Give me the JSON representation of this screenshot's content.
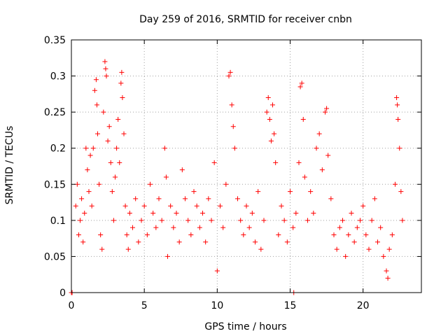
{
  "chart_data": {
    "type": "scatter",
    "title": "Day 259 of 2016, SRMTID for receiver cnbn",
    "xlabel": "GPS time / hours",
    "ylabel": "SRMTID / TECUs",
    "xlim": [
      0,
      24
    ],
    "ylim": [
      0,
      0.35
    ],
    "xticks": [
      0,
      5,
      10,
      15,
      20
    ],
    "xtick_labels": [
      "0",
      "5",
      "10",
      "15",
      "20"
    ],
    "yticks": [
      0,
      0.05,
      0.1,
      0.15,
      0.2,
      0.25,
      0.3,
      0.35
    ],
    "ytick_labels": [
      "0",
      "0.05",
      "0.1",
      "0.15",
      "0.2",
      "0.25",
      "0.3",
      "0.35"
    ],
    "grid": true,
    "marker": "+",
    "color": "#ff0000",
    "series": [
      {
        "name": "SRMTID",
        "points": [
          [
            0.0,
            0.0
          ],
          [
            0.05,
            0.0
          ],
          [
            15.25,
            0.0
          ],
          [
            0.3,
            0.12
          ],
          [
            0.4,
            0.15
          ],
          [
            0.5,
            0.08
          ],
          [
            0.6,
            0.1
          ],
          [
            0.7,
            0.13
          ],
          [
            0.8,
            0.07
          ],
          [
            0.9,
            0.11
          ],
          [
            1.0,
            0.2
          ],
          [
            1.1,
            0.17
          ],
          [
            1.2,
            0.14
          ],
          [
            1.3,
            0.19
          ],
          [
            1.4,
            0.12
          ],
          [
            1.5,
            0.2
          ],
          [
            1.6,
            0.28
          ],
          [
            1.7,
            0.295
          ],
          [
            1.75,
            0.26
          ],
          [
            1.8,
            0.22
          ],
          [
            1.9,
            0.15
          ],
          [
            2.0,
            0.08
          ],
          [
            2.1,
            0.06
          ],
          [
            2.2,
            0.25
          ],
          [
            2.3,
            0.32
          ],
          [
            2.35,
            0.31
          ],
          [
            2.4,
            0.3
          ],
          [
            2.5,
            0.21
          ],
          [
            2.6,
            0.23
          ],
          [
            2.7,
            0.18
          ],
          [
            2.8,
            0.14
          ],
          [
            2.9,
            0.1
          ],
          [
            3.0,
            0.16
          ],
          [
            3.1,
            0.2
          ],
          [
            3.2,
            0.24
          ],
          [
            3.3,
            0.18
          ],
          [
            3.4,
            0.29
          ],
          [
            3.45,
            0.305
          ],
          [
            3.5,
            0.27
          ],
          [
            3.6,
            0.22
          ],
          [
            3.7,
            0.12
          ],
          [
            3.8,
            0.08
          ],
          [
            3.9,
            0.06
          ],
          [
            4.0,
            0.11
          ],
          [
            4.2,
            0.09
          ],
          [
            4.4,
            0.13
          ],
          [
            4.6,
            0.07
          ],
          [
            4.8,
            0.1
          ],
          [
            5.0,
            0.12
          ],
          [
            5.2,
            0.08
          ],
          [
            5.4,
            0.15
          ],
          [
            5.6,
            0.11
          ],
          [
            5.8,
            0.09
          ],
          [
            6.0,
            0.13
          ],
          [
            6.2,
            0.1
          ],
          [
            6.4,
            0.2
          ],
          [
            6.5,
            0.16
          ],
          [
            6.6,
            0.05
          ],
          [
            6.8,
            0.12
          ],
          [
            7.0,
            0.09
          ],
          [
            7.2,
            0.11
          ],
          [
            7.4,
            0.07
          ],
          [
            7.6,
            0.17
          ],
          [
            7.8,
            0.13
          ],
          [
            8.0,
            0.1
          ],
          [
            8.2,
            0.08
          ],
          [
            8.4,
            0.14
          ],
          [
            8.6,
            0.12
          ],
          [
            8.8,
            0.09
          ],
          [
            9.0,
            0.11
          ],
          [
            9.2,
            0.07
          ],
          [
            9.4,
            0.13
          ],
          [
            9.6,
            0.1
          ],
          [
            9.8,
            0.18
          ],
          [
            10.0,
            0.03
          ],
          [
            10.2,
            0.12
          ],
          [
            10.4,
            0.09
          ],
          [
            10.6,
            0.15
          ],
          [
            10.8,
            0.3
          ],
          [
            10.9,
            0.305
          ],
          [
            11.0,
            0.26
          ],
          [
            11.1,
            0.23
          ],
          [
            11.2,
            0.2
          ],
          [
            11.4,
            0.13
          ],
          [
            11.6,
            0.1
          ],
          [
            11.8,
            0.08
          ],
          [
            12.0,
            0.12
          ],
          [
            12.2,
            0.09
          ],
          [
            12.4,
            0.11
          ],
          [
            12.6,
            0.07
          ],
          [
            12.8,
            0.14
          ],
          [
            13.0,
            0.06
          ],
          [
            13.2,
            0.1
          ],
          [
            13.4,
            0.25
          ],
          [
            13.5,
            0.27
          ],
          [
            13.6,
            0.24
          ],
          [
            13.7,
            0.21
          ],
          [
            13.8,
            0.26
          ],
          [
            13.9,
            0.22
          ],
          [
            14.0,
            0.18
          ],
          [
            14.2,
            0.08
          ],
          [
            14.4,
            0.12
          ],
          [
            14.6,
            0.1
          ],
          [
            14.8,
            0.07
          ],
          [
            15.0,
            0.14
          ],
          [
            15.2,
            0.09
          ],
          [
            15.4,
            0.11
          ],
          [
            15.6,
            0.18
          ],
          [
            15.7,
            0.285
          ],
          [
            15.8,
            0.29
          ],
          [
            15.9,
            0.24
          ],
          [
            16.0,
            0.16
          ],
          [
            16.2,
            0.1
          ],
          [
            16.4,
            0.14
          ],
          [
            16.6,
            0.11
          ],
          [
            16.8,
            0.2
          ],
          [
            17.0,
            0.22
          ],
          [
            17.2,
            0.17
          ],
          [
            17.4,
            0.25
          ],
          [
            17.5,
            0.255
          ],
          [
            17.6,
            0.19
          ],
          [
            17.8,
            0.13
          ],
          [
            18.0,
            0.08
          ],
          [
            18.2,
            0.06
          ],
          [
            18.4,
            0.09
          ],
          [
            18.6,
            0.1
          ],
          [
            18.8,
            0.05
          ],
          [
            19.0,
            0.08
          ],
          [
            19.2,
            0.11
          ],
          [
            19.4,
            0.07
          ],
          [
            19.6,
            0.09
          ],
          [
            19.8,
            0.1
          ],
          [
            20.0,
            0.12
          ],
          [
            20.2,
            0.08
          ],
          [
            20.4,
            0.06
          ],
          [
            20.6,
            0.1
          ],
          [
            20.8,
            0.13
          ],
          [
            21.0,
            0.07
          ],
          [
            21.2,
            0.09
          ],
          [
            21.4,
            0.05
          ],
          [
            21.6,
            0.03
          ],
          [
            21.7,
            0.02
          ],
          [
            21.8,
            0.06
          ],
          [
            22.0,
            0.08
          ],
          [
            22.2,
            0.15
          ],
          [
            22.3,
            0.27
          ],
          [
            22.35,
            0.26
          ],
          [
            22.4,
            0.24
          ],
          [
            22.5,
            0.2
          ],
          [
            22.6,
            0.14
          ],
          [
            22.7,
            0.1
          ]
        ]
      }
    ]
  }
}
